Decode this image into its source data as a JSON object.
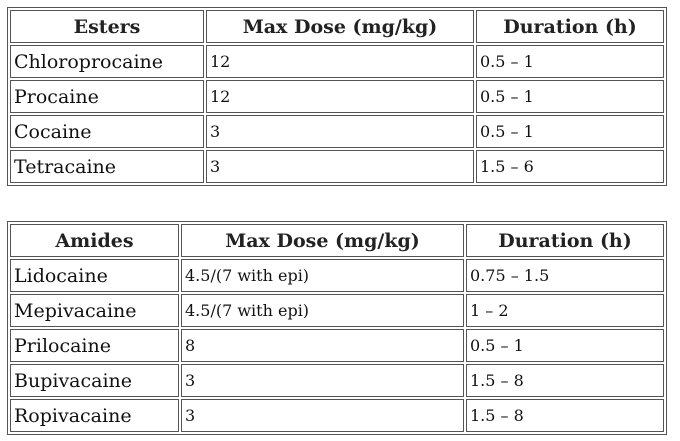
{
  "esters": {
    "headers": [
      "Esters",
      "Max Dose (mg/kg)",
      "Duration (h)"
    ],
    "rows": [
      {
        "name": "Chloroprocaine",
        "max_dose": "12",
        "duration": "0.5 – 1"
      },
      {
        "name": "Procaine",
        "max_dose": "12",
        "duration": "0.5 – 1"
      },
      {
        "name": "Cocaine",
        "max_dose": "3",
        "duration": "0.5 – 1"
      },
      {
        "name": "Tetracaine",
        "max_dose": "3",
        "duration": "1.5 – 6"
      }
    ]
  },
  "amides": {
    "headers": [
      "Amides",
      "Max Dose (mg/kg)",
      "Duration (h)"
    ],
    "rows": [
      {
        "name": "Lidocaine",
        "max_dose": "4.5/(7 with epi)",
        "duration": "0.75 – 1.5"
      },
      {
        "name": "Mepivacaine",
        "max_dose": "4.5/(7 with epi)",
        "duration": "1 – 2"
      },
      {
        "name": "Prilocaine",
        "max_dose": "8",
        "duration": "0.5 – 1"
      },
      {
        "name": "Bupivacaine",
        "max_dose": "3",
        "duration": "1.5 – 8"
      },
      {
        "name": "Ropivacaine",
        "max_dose": "3",
        "duration": "1.5 – 8"
      }
    ]
  }
}
